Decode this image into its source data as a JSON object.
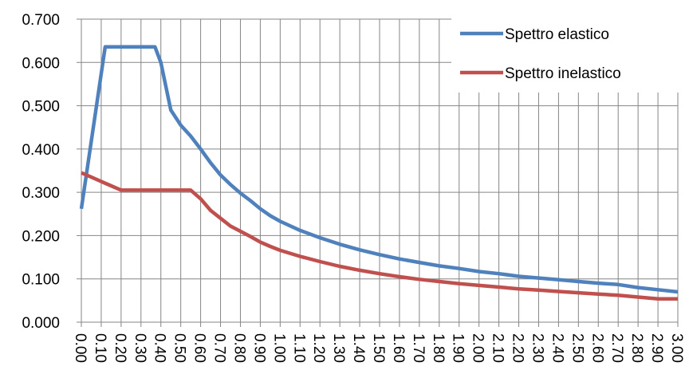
{
  "chart_data": {
    "type": "line",
    "title": "",
    "xlabel": "",
    "ylabel": "",
    "ylim": [
      0,
      0.7
    ],
    "xlim": [
      0,
      3
    ],
    "grid": true,
    "legend_position": "top-right",
    "y_ticks": [
      "0.000",
      "0.100",
      "0.200",
      "0.300",
      "0.400",
      "0.500",
      "0.600",
      "0.700"
    ],
    "x_ticks": [
      "0.00",
      "0.10",
      "0.20",
      "0.30",
      "0.40",
      "0.50",
      "0.60",
      "0.70",
      "0.80",
      "0.90",
      "1.00",
      "1.10",
      "1.20",
      "1.30",
      "1.40",
      "1.50",
      "1.60",
      "1.70",
      "1.80",
      "1.90",
      "2.00",
      "2.10",
      "2.20",
      "2.30",
      "2.40",
      "2.50",
      "2.60",
      "2.70",
      "2.80",
      "2.90",
      "3.00"
    ],
    "series": [
      {
        "name": "Spettro elastico",
        "color": "#4f81bd",
        "x": [
          0.0,
          0.12,
          0.16,
          0.2,
          0.25,
          0.3,
          0.37,
          0.4,
          0.45,
          0.5,
          0.55,
          0.6,
          0.65,
          0.7,
          0.75,
          0.8,
          0.85,
          0.9,
          0.95,
          1.0,
          1.1,
          1.2,
          1.3,
          1.4,
          1.5,
          1.6,
          1.7,
          1.8,
          1.9,
          2.0,
          2.1,
          2.2,
          2.3,
          2.4,
          2.5,
          2.6,
          2.7,
          2.8,
          2.9,
          3.0
        ],
        "y": [
          0.262,
          0.636,
          0.636,
          0.636,
          0.636,
          0.636,
          0.636,
          0.6,
          0.49,
          0.455,
          0.43,
          0.4,
          0.368,
          0.34,
          0.318,
          0.298,
          0.281,
          0.262,
          0.246,
          0.233,
          0.212,
          0.195,
          0.18,
          0.167,
          0.156,
          0.146,
          0.138,
          0.13,
          0.124,
          0.117,
          0.112,
          0.106,
          0.102,
          0.098,
          0.094,
          0.09,
          0.087,
          0.08,
          0.075,
          0.07
        ]
      },
      {
        "name": "Spettro inelastico",
        "color": "#c0504d",
        "x": [
          0.0,
          0.05,
          0.1,
          0.15,
          0.2,
          0.25,
          0.3,
          0.35,
          0.4,
          0.45,
          0.5,
          0.55,
          0.6,
          0.65,
          0.7,
          0.75,
          0.8,
          0.85,
          0.9,
          0.95,
          1.0,
          1.1,
          1.2,
          1.3,
          1.4,
          1.5,
          1.6,
          1.7,
          1.8,
          1.9,
          2.0,
          2.1,
          2.2,
          2.3,
          2.4,
          2.5,
          2.6,
          2.7,
          2.8,
          2.9,
          3.0
        ],
        "y": [
          0.345,
          0.335,
          0.325,
          0.315,
          0.305,
          0.305,
          0.305,
          0.305,
          0.305,
          0.305,
          0.305,
          0.305,
          0.285,
          0.258,
          0.24,
          0.222,
          0.21,
          0.198,
          0.185,
          0.175,
          0.166,
          0.152,
          0.14,
          0.129,
          0.12,
          0.112,
          0.105,
          0.099,
          0.094,
          0.089,
          0.085,
          0.081,
          0.077,
          0.074,
          0.071,
          0.068,
          0.065,
          0.062,
          0.058,
          0.054,
          0.054
        ]
      }
    ]
  }
}
